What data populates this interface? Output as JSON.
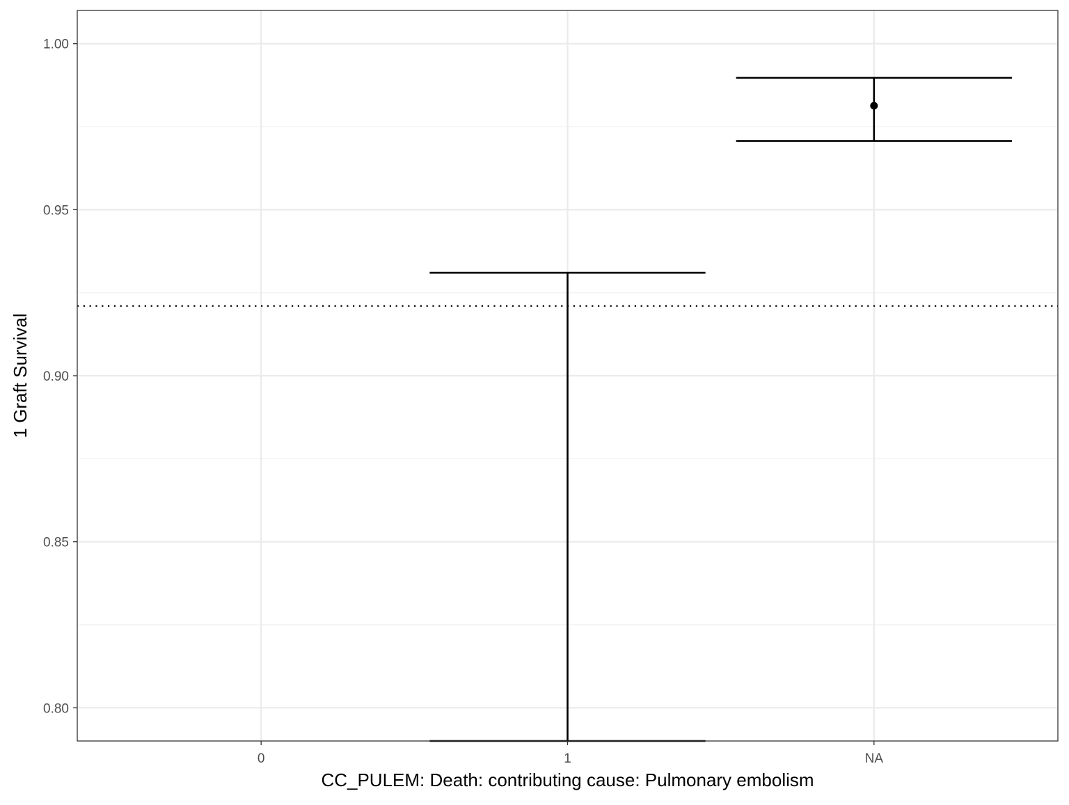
{
  "chart_data": {
    "type": "errorbar",
    "title": "",
    "xlabel": "CC_PULEM: Death: contributing cause: Pulmonary embolism",
    "ylabel": "1 Graft Survival",
    "categories": [
      "0",
      "1",
      "NA"
    ],
    "ylim": [
      0.79,
      1.01
    ],
    "yticks": [
      0.8,
      0.85,
      0.9,
      0.95,
      1.0
    ],
    "ytick_labels": [
      "0.80",
      "0.85",
      "0.90",
      "0.95",
      "1.00"
    ],
    "grid": true,
    "reference_line": {
      "y": 0.921,
      "style": "dotted"
    },
    "points": [
      {
        "category": "0",
        "estimate": null,
        "lower": null,
        "upper": null
      },
      {
        "category": "1",
        "estimate": null,
        "lower": 0.79,
        "upper": 0.931
      },
      {
        "category": "NA",
        "estimate": 0.9813,
        "lower": 0.9707,
        "upper": 0.9897
      }
    ],
    "colors": {
      "marks": "#000000",
      "grid_major": "#ebebeb",
      "grid_minor": "#f2f2f2",
      "panel_border": "#333333",
      "tick_label": "#4d4d4d"
    }
  }
}
